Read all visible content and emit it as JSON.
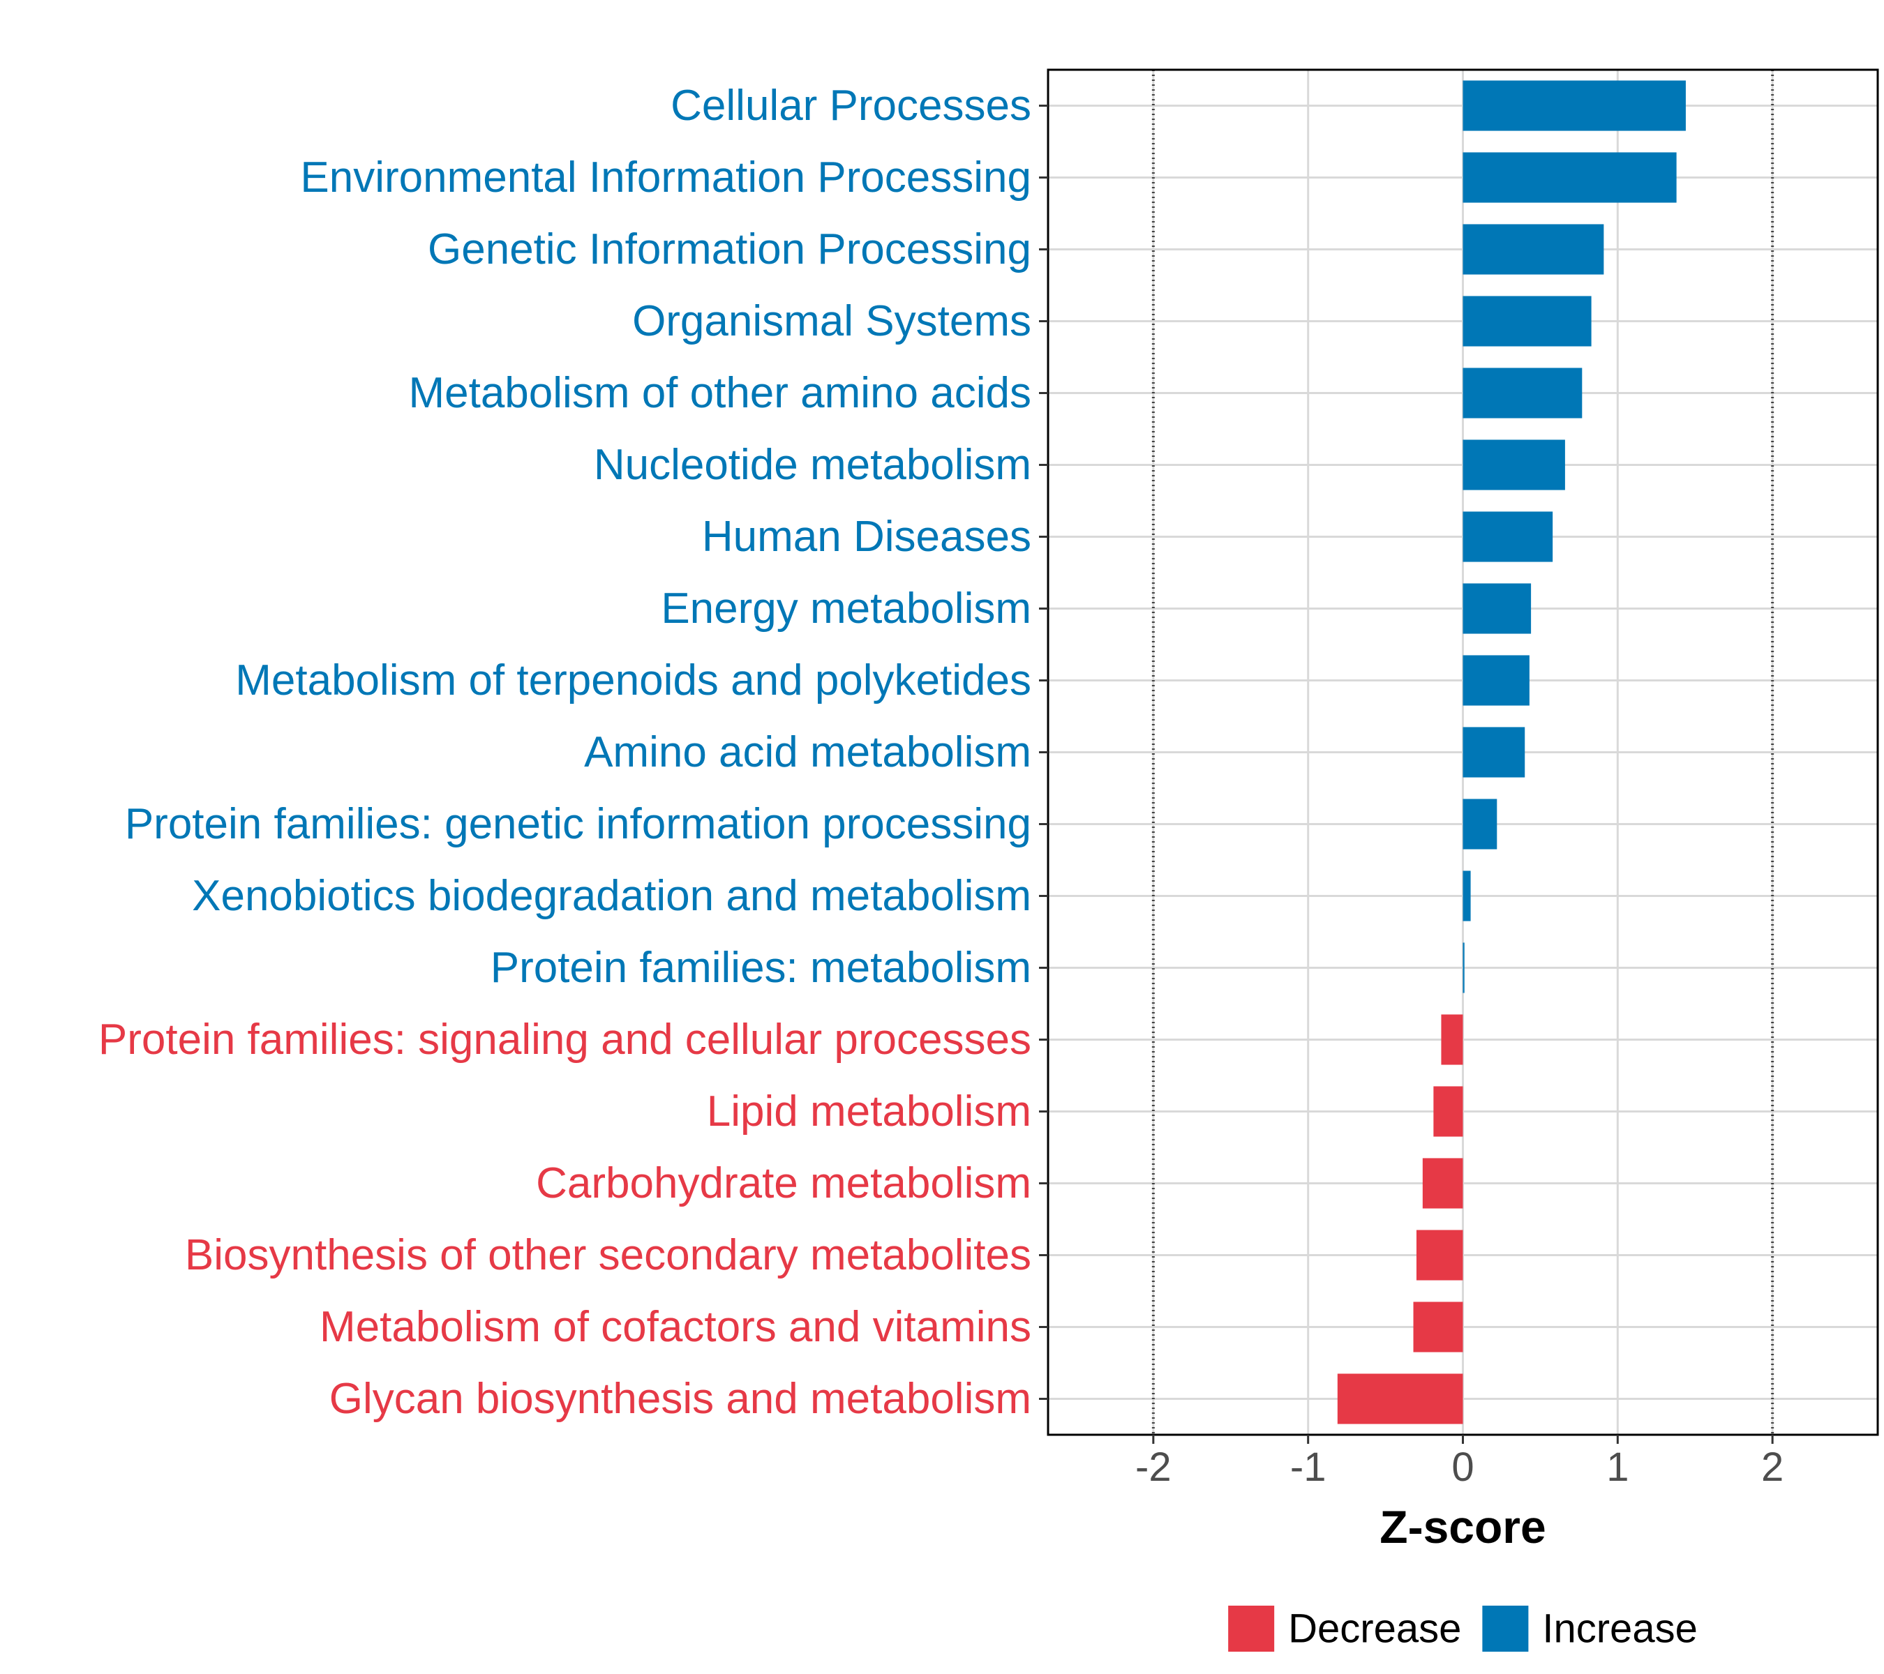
{
  "chart_data": {
    "type": "bar",
    "orientation": "horizontal",
    "categories": [
      "Cellular Processes",
      "Environmental Information Processing",
      "Genetic Information Processing",
      "Organismal Systems",
      "Metabolism of other amino acids",
      "Nucleotide metabolism",
      "Human Diseases",
      "Energy metabolism",
      "Metabolism of terpenoids and polyketides",
      "Amino acid metabolism",
      "Protein families: genetic information processing",
      "Xenobiotics biodegradation and metabolism",
      "Protein families: metabolism",
      "Protein families: signaling and cellular processes",
      "Lipid metabolism",
      "Carbohydrate metabolism",
      "Biosynthesis of other secondary metabolites",
      "Metabolism of cofactors and vitamins",
      "Glycan biosynthesis and metabolism"
    ],
    "values": [
      1.44,
      1.38,
      0.91,
      0.83,
      0.77,
      0.66,
      0.58,
      0.44,
      0.43,
      0.4,
      0.22,
      0.05,
      0.01,
      -0.14,
      -0.19,
      -0.26,
      -0.3,
      -0.32,
      -0.81
    ],
    "groups": [
      "Increase",
      "Increase",
      "Increase",
      "Increase",
      "Increase",
      "Increase",
      "Increase",
      "Increase",
      "Increase",
      "Increase",
      "Increase",
      "Increase",
      "Increase",
      "Decrease",
      "Decrease",
      "Decrease",
      "Decrease",
      "Decrease",
      "Decrease"
    ],
    "xlabel": "Z-score",
    "ylabel": "",
    "xlim": [
      -2.68,
      2.68
    ],
    "xticks": [
      -2,
      -1,
      0,
      1,
      2
    ],
    "xtick_labels": [
      "-2",
      "-1",
      "0",
      "1",
      "2"
    ],
    "reference_lines": [
      -2,
      2
    ],
    "grid": true,
    "legend": {
      "position": "bottom",
      "entries": [
        {
          "label": "Decrease",
          "color": "#E63946"
        },
        {
          "label": "Increase",
          "color": "#0077B6"
        }
      ]
    },
    "colors": {
      "Decrease": "#E63946",
      "Increase": "#0077B6"
    }
  }
}
